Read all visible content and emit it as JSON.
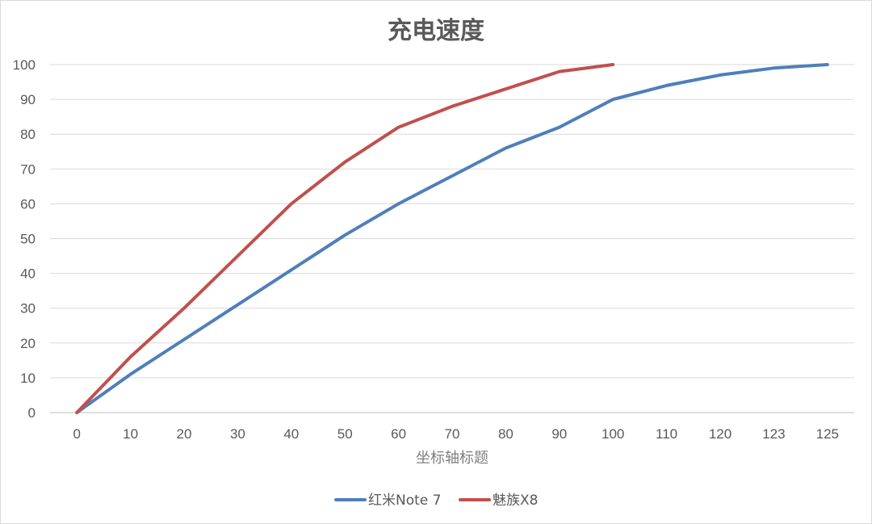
{
  "chart_data": {
    "type": "line",
    "title": "充电速度",
    "xlabel": "坐标轴标题",
    "ylabel": "",
    "categories": [
      "0",
      "10",
      "20",
      "30",
      "40",
      "50",
      "60",
      "70",
      "80",
      "90",
      "100",
      "110",
      "120",
      "123",
      "125"
    ],
    "ylim": [
      0,
      100
    ],
    "yticks": [
      0,
      10,
      20,
      30,
      40,
      50,
      60,
      70,
      80,
      90,
      100
    ],
    "grid": true,
    "legend": "bottom",
    "series": [
      {
        "name": "红米Note 7",
        "color": "#4f7fba",
        "values": [
          0,
          11,
          21,
          31,
          41,
          51,
          60,
          68,
          76,
          82,
          90,
          94,
          97,
          99,
          100
        ]
      },
      {
        "name": "魅族X8",
        "color": "#c0504d",
        "values": [
          0,
          16,
          30,
          45,
          60,
          72,
          82,
          88,
          93,
          98,
          100,
          null,
          null,
          null,
          null
        ]
      }
    ]
  }
}
